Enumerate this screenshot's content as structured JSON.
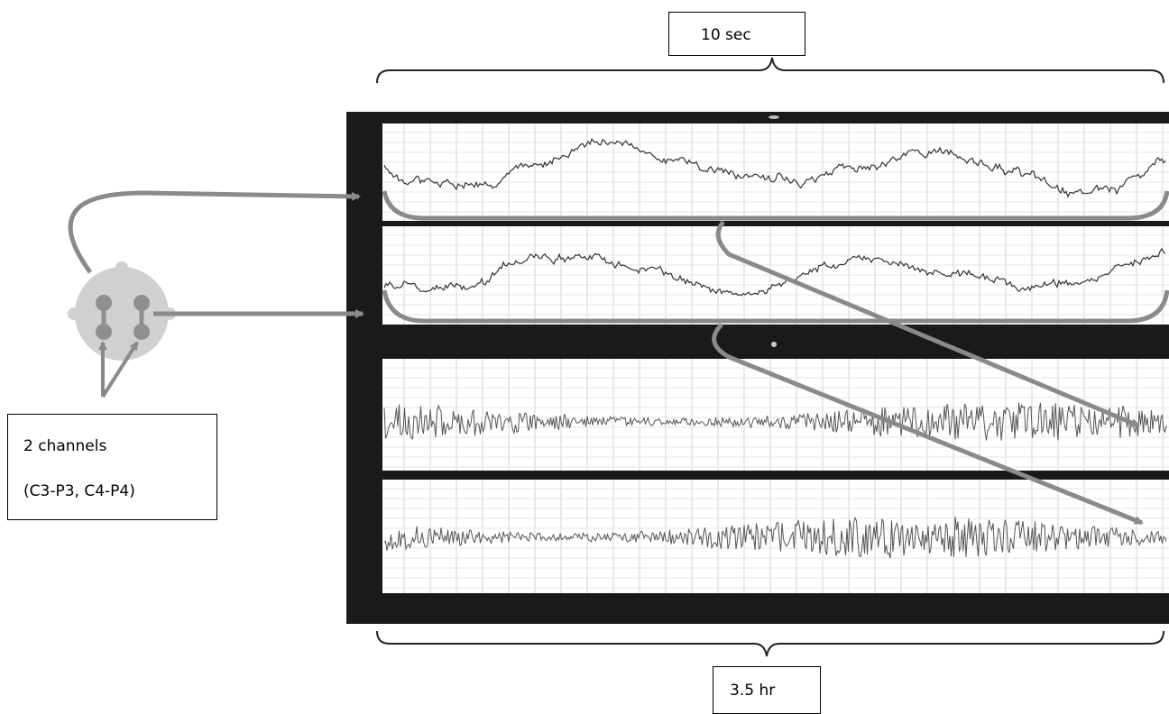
{
  "labels": {
    "top_window": "10 sec",
    "bottom_window": "3.5 hr",
    "channels_line1": "2 channels",
    "channels_line2": "(C3-P3, C4-P4)"
  },
  "colors": {
    "frame": "#1a1a1a",
    "grid": "#d4d4d4",
    "trace_short": "#333333",
    "trace_long": "#555555",
    "arrow": "#8a8a8a",
    "head": "#d0d0d0",
    "electrode": "#8f8f8f"
  },
  "icons": {
    "head": "scalp-electrode-montage-icon"
  }
}
